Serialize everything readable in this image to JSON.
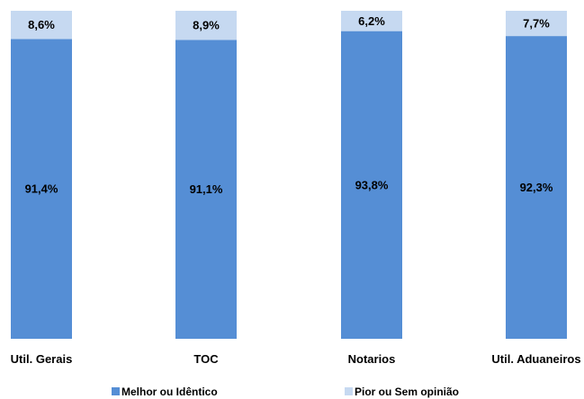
{
  "chart_data": {
    "type": "bar",
    "stacked": true,
    "percent_stacked": true,
    "categories": [
      "Util. Gerais",
      "TOC",
      "Notarios",
      "Util. Aduaneiros"
    ],
    "series": [
      {
        "name": "Melhor ou Idêntico",
        "color": "#558ed5",
        "values": [
          91.4,
          91.1,
          93.8,
          92.3
        ],
        "labels": [
          "91,4%",
          "91,1%",
          "93,8%",
          "92,3%"
        ]
      },
      {
        "name": "Pior ou Sem opinião",
        "color": "#c6d9f1",
        "values": [
          8.6,
          8.9,
          6.2,
          7.7
        ],
        "labels": [
          "8,6%",
          "8,9%",
          "6,2%",
          "7,7%"
        ]
      }
    ],
    "ylim": [
      0,
      100
    ],
    "grid": false,
    "legend": "bottom"
  }
}
